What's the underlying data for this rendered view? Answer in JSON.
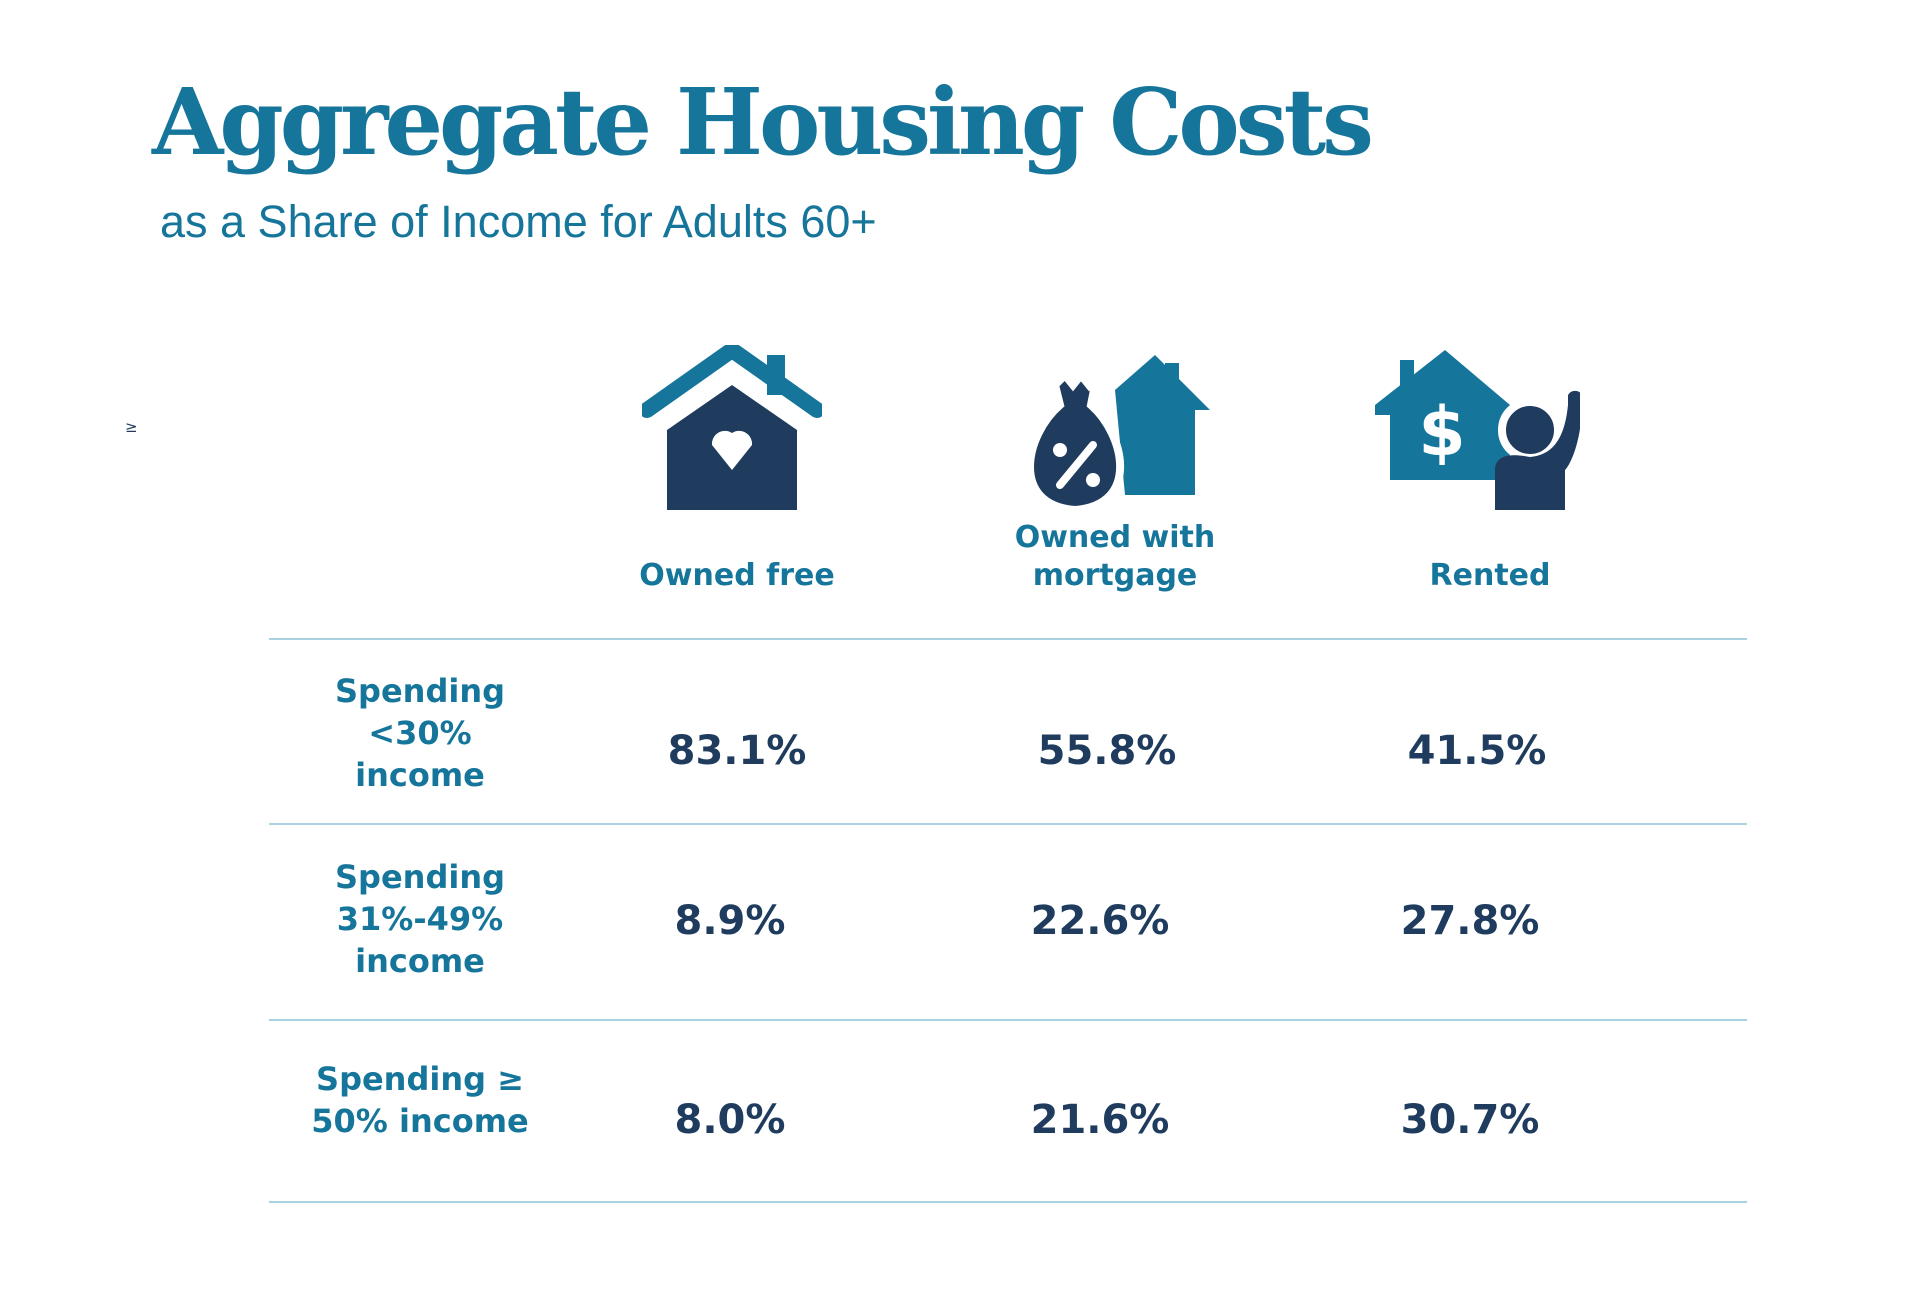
{
  "title": "Aggregate Housing Costs",
  "subtitle": "as a Share of Income for Adults 60+",
  "stray_symbol": "≥",
  "colors": {
    "teal": "#16759a",
    "navy": "#1f3c5e",
    "rule": "#a9d3e0"
  },
  "columns": [
    {
      "label": "Owned free",
      "icon": "house-heart-icon"
    },
    {
      "label": "Owned with mortgage",
      "icon": "money-bag-house-icon"
    },
    {
      "label": "Rented",
      "icon": "house-dollar-person-icon"
    }
  ],
  "rows": [
    {
      "label": "Spending <30% income",
      "values": [
        "83.1%",
        "55.8%",
        "41.5%"
      ]
    },
    {
      "label": "Spending 31%-49% income",
      "values": [
        "8.9%",
        "22.6%",
        "27.8%"
      ]
    },
    {
      "label": "Spending ≥ 50% income",
      "values": [
        "8.0%",
        "21.6%",
        "30.7%"
      ]
    }
  ]
}
